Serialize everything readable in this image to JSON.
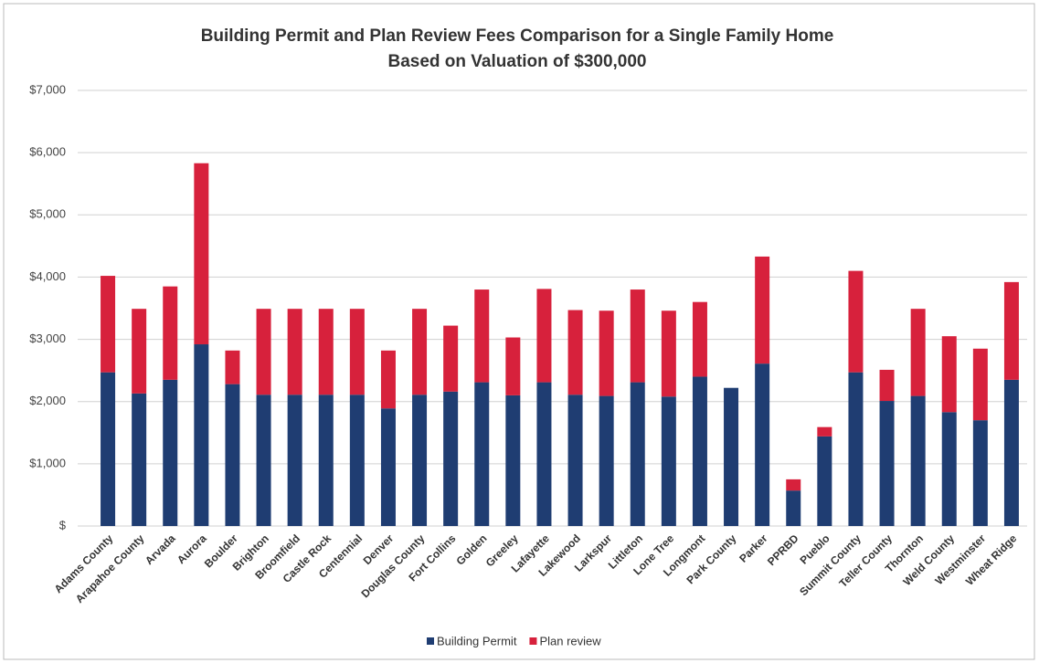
{
  "chart_data": {
    "type": "stacked-bar",
    "title": "Building Permit and Plan Review Fees Comparison for a Single Family Home",
    "subtitle": "Based on Valuation of $300,000",
    "categories": [
      "Adams County",
      "Arapahoe County",
      "Arvada",
      "Aurora",
      "Boulder",
      "Brighton",
      "Broomfield",
      "Castle Rock",
      "Centennial",
      "Denver",
      "Douglas County",
      "Fort Collins",
      "Golden",
      "Greeley",
      "Lafayette",
      "Lakewood",
      "Larkspur",
      "Littleton",
      "Lone Tree",
      "Longmont",
      "Park County",
      "Parker",
      "PPRBD",
      "Pueblo",
      "Summit County",
      "Teller County",
      "Thornton",
      "Weld County",
      "Westminster",
      "Wheat Ridge"
    ],
    "series": [
      {
        "name": "Building Permit",
        "color": "#1f3d72",
        "values": [
          2470,
          2130,
          2350,
          2920,
          2280,
          2110,
          2110,
          2110,
          2110,
          1890,
          2110,
          2160,
          2310,
          2100,
          2310,
          2110,
          2090,
          2310,
          2080,
          2400,
          2220,
          2610,
          570,
          1440,
          2470,
          2010,
          2090,
          1830,
          1700,
          2350
        ]
      },
      {
        "name": "Plan review",
        "color": "#d7213c",
        "values": [
          1550,
          1360,
          1500,
          2910,
          540,
          1380,
          1380,
          1380,
          1380,
          930,
          1380,
          1060,
          1490,
          930,
          1500,
          1360,
          1370,
          1490,
          1380,
          1200,
          0,
          1720,
          180,
          150,
          1630,
          500,
          1400,
          1220,
          1150,
          1570
        ]
      }
    ],
    "ylim": [
      0,
      7000
    ],
    "yticks": [
      {
        "value": 0,
        "label": "$"
      },
      {
        "value": 1000,
        "label": "$1,000"
      },
      {
        "value": 2000,
        "label": "$2,000"
      },
      {
        "value": 3000,
        "label": "$3,000"
      },
      {
        "value": 4000,
        "label": "$4,000"
      },
      {
        "value": 5000,
        "label": "$5,000"
      },
      {
        "value": 6000,
        "label": "$6,000"
      },
      {
        "value": 7000,
        "label": "$7,000"
      }
    ],
    "grid": true,
    "legend": "bottom"
  }
}
